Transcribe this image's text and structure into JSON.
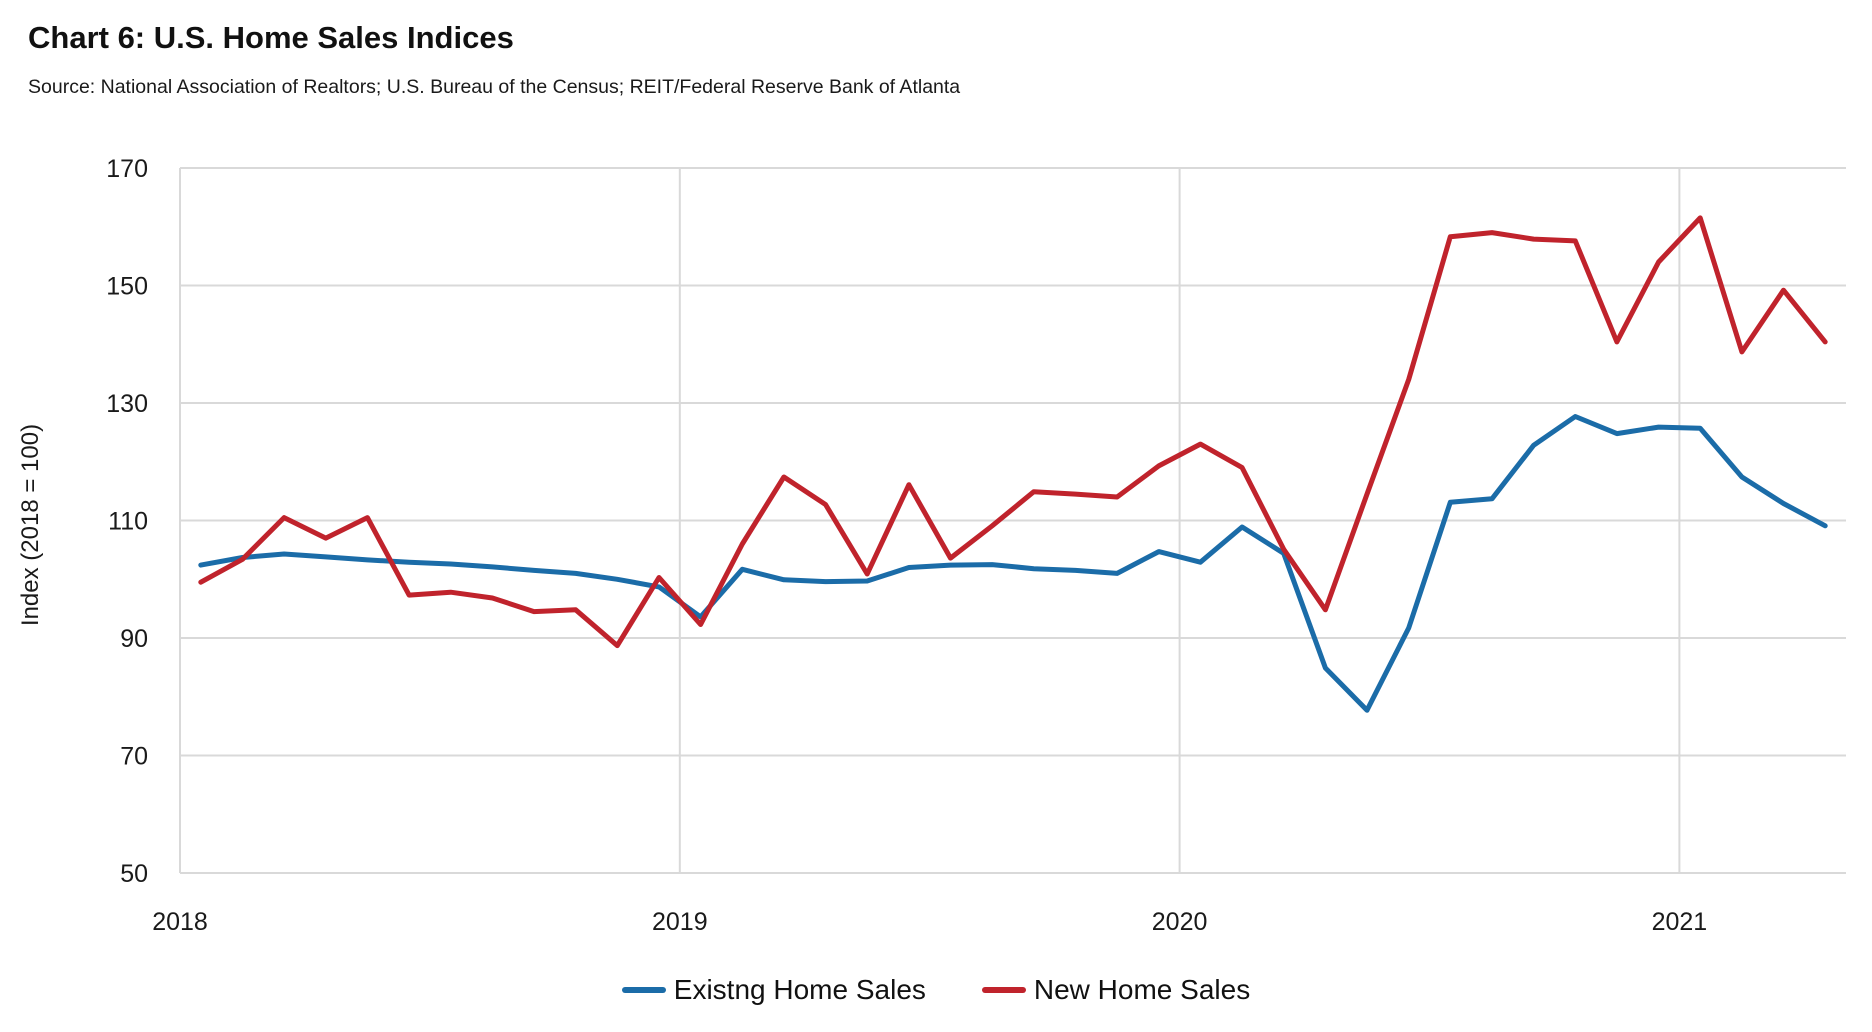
{
  "header": {
    "title": "Chart 6: U.S. Home Sales Indices",
    "source": "Source: National Association of Realtors; U.S. Bureau of the Census; REIT/Federal Reserve Bank of Atlanta"
  },
  "chart_data": {
    "type": "line",
    "title": "Chart 6: U.S. Home Sales Indices",
    "source": "Source: National Association of Realtors; U.S. Bureau of the Census; REIT/Federal Reserve Bank of Atlanta",
    "ylabel": "Index (2018 = 100)",
    "ylim": [
      50,
      170
    ],
    "yticks": [
      50,
      70,
      90,
      110,
      130,
      150,
      170
    ],
    "x_tick_labels": [
      "2018",
      "2019",
      "2020",
      "2021"
    ],
    "months_per_label": 12,
    "grid": true,
    "legend_position": "bottom",
    "months": [
      "Jan-2018",
      "Feb-2018",
      "Mar-2018",
      "Apr-2018",
      "May-2018",
      "Jun-2018",
      "Jul-2018",
      "Aug-2018",
      "Sep-2018",
      "Oct-2018",
      "Nov-2018",
      "Dec-2018",
      "Jan-2019",
      "Feb-2019",
      "Mar-2019",
      "Apr-2019",
      "May-2019",
      "Jun-2019",
      "Jul-2019",
      "Aug-2019",
      "Sep-2019",
      "Oct-2019",
      "Nov-2019",
      "Dec-2019",
      "Jan-2020",
      "Feb-2020",
      "Mar-2020",
      "Apr-2020",
      "May-2020",
      "Jun-2020",
      "Jul-2020",
      "Aug-2020",
      "Sep-2020",
      "Oct-2020",
      "Nov-2020",
      "Dec-2020",
      "Jan-2021",
      "Feb-2021",
      "Mar-2021",
      "Apr-2021"
    ],
    "series": [
      {
        "name": "Existng Home Sales",
        "color": "#1b6ca8",
        "values": [
          102.4,
          103.7,
          104.3,
          103.8,
          103.3,
          102.9,
          102.6,
          102.1,
          101.5,
          101.0,
          100.0,
          98.7,
          93.6,
          101.7,
          99.9,
          99.6,
          99.7,
          102.0,
          102.4,
          102.5,
          101.8,
          101.5,
          101.0,
          104.7,
          102.9,
          108.9,
          104.4,
          84.9,
          77.7,
          91.7,
          113.1,
          113.7,
          122.8,
          127.7,
          124.8,
          125.9,
          125.7,
          117.4,
          112.9,
          109.1
        ]
      },
      {
        "name": "New Home Sales",
        "color": "#c0232c",
        "values": [
          99.5,
          103.4,
          110.5,
          107.0,
          110.5,
          97.3,
          97.8,
          96.8,
          94.5,
          94.8,
          88.7,
          100.3,
          92.3,
          106.0,
          117.4,
          112.7,
          100.9,
          116.1,
          103.6,
          109.1,
          114.9,
          114.5,
          114.0,
          119.3,
          123.0,
          119.0,
          105.1,
          94.8,
          114.5,
          134.0,
          158.3,
          159.0,
          157.9,
          157.6,
          140.4,
          154.0,
          161.5,
          138.7,
          149.2,
          140.4
        ]
      }
    ],
    "style": {
      "gridline_color": "#d9d9d9",
      "tick_label_color": "#1a1a1a",
      "line_width": 5
    }
  }
}
